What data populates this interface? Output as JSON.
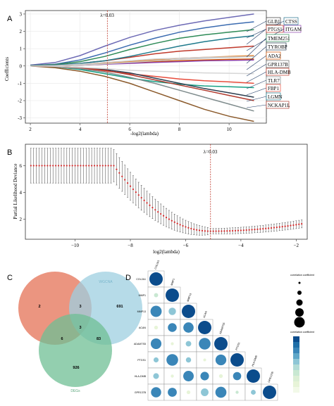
{
  "panel_labels": [
    "A",
    "B",
    "C",
    "D"
  ],
  "chart_data": [
    {
      "type": "line",
      "panel": "A",
      "title": "",
      "xlabel": "-log2(lambda)",
      "ylabel": "Coefficients",
      "xlim": [
        1.8,
        11.5
      ],
      "ylim": [
        -3.3,
        3.2
      ],
      "xticks": [
        "2",
        "4",
        "6",
        "8",
        "10"
      ],
      "yticks": [
        "-3",
        "-2",
        "-1",
        "0",
        "1",
        "2",
        "3"
      ],
      "grid": true,
      "vline": {
        "x": 5.1,
        "label": "λ=0.03"
      },
      "x": [
        2,
        3,
        4,
        5,
        6,
        7,
        8,
        9,
        10,
        11
      ],
      "series": [
        {
          "color": "#6d6ab5",
          "values": [
            0.05,
            0.2,
            0.6,
            1.15,
            1.65,
            2.05,
            2.35,
            2.6,
            2.8,
            3.0
          ]
        },
        {
          "color": "#3b6bb0",
          "values": [
            0.03,
            0.1,
            0.35,
            0.75,
            1.2,
            1.6,
            1.95,
            2.2,
            2.4,
            2.55
          ]
        },
        {
          "color": "#2e8b57",
          "values": [
            0.02,
            0.08,
            0.25,
            0.55,
            0.95,
            1.3,
            1.6,
            1.8,
            1.95,
            2.1
          ]
        },
        {
          "color": "#c0392b",
          "values": [
            0.0,
            0.05,
            0.15,
            0.3,
            0.5,
            0.7,
            0.85,
            0.95,
            1.05,
            1.15
          ]
        },
        {
          "color": "#e67e22",
          "values": [
            0.0,
            0.03,
            0.08,
            0.15,
            0.25,
            0.35,
            0.45,
            0.5,
            0.55,
            0.6
          ]
        },
        {
          "color": "#d35400",
          "values": [
            0.0,
            0.0,
            0.05,
            0.1,
            0.18,
            0.25,
            0.3,
            0.35,
            0.38,
            0.4
          ]
        },
        {
          "color": "#8e44ad",
          "values": [
            0.0,
            0.02,
            0.05,
            0.1,
            0.15,
            0.2,
            0.25,
            0.3,
            0.32,
            0.35
          ]
        },
        {
          "color": "#16a085",
          "values": [
            0.0,
            -0.05,
            -0.2,
            -0.45,
            -0.7,
            -0.9,
            -1.05,
            -1.15,
            -1.2,
            -1.25
          ]
        },
        {
          "color": "#e74c3c",
          "values": [
            0.0,
            -0.03,
            -0.12,
            -0.28,
            -0.45,
            -0.6,
            -0.75,
            -0.85,
            -0.92,
            -1.0
          ]
        },
        {
          "color": "#2c3e50",
          "values": [
            0.0,
            -0.02,
            -0.08,
            -0.2,
            -0.4,
            -0.7,
            -1.0,
            -1.3,
            -1.55,
            -1.8
          ]
        },
        {
          "color": "#7f8c8d",
          "values": [
            0.0,
            -0.05,
            -0.15,
            -0.35,
            -0.65,
            -1.0,
            -1.4,
            -1.8,
            -2.2,
            -2.6
          ]
        },
        {
          "color": "#8b5a2b",
          "values": [
            0.0,
            -0.1,
            -0.3,
            -0.6,
            -1.0,
            -1.5,
            -2.0,
            -2.5,
            -2.9,
            -3.2
          ]
        },
        {
          "color": "#1f7a8c",
          "values": [
            0.0,
            0.05,
            0.15,
            0.3,
            0.55,
            0.85,
            1.15,
            1.4,
            1.6,
            1.75
          ]
        },
        {
          "color": "#b03a2e",
          "values": [
            0.0,
            -0.02,
            -0.1,
            -0.25,
            -0.5,
            -0.8,
            -1.1,
            -1.4,
            -1.7,
            -2.0
          ]
        },
        {
          "color": "#cfcfcf",
          "values": [
            0.0,
            0.02,
            0.1,
            0.2,
            0.3,
            0.4,
            0.45,
            0.5,
            0.52,
            0.55
          ]
        },
        {
          "color": "#d6d6d6",
          "values": [
            0.0,
            -0.02,
            -0.08,
            -0.15,
            -0.25,
            -0.3,
            -0.35,
            -0.4,
            -0.42,
            -0.45
          ]
        },
        {
          "color": "#c8c8c8",
          "values": [
            0.0,
            0.01,
            0.05,
            0.12,
            0.2,
            0.3,
            0.38,
            0.45,
            0.5,
            0.55
          ]
        }
      ],
      "gene_labels": [
        "GLB1",
        "CTSS",
        "PTGS1",
        "ITGAM",
        "TMEM251",
        "TYROBP",
        "ADA2",
        "GPR137B",
        "HLA-DMB",
        "TLR7",
        "FBP1",
        "LGMN",
        "NCKAP1L"
      ]
    },
    {
      "type": "scatter",
      "panel": "B",
      "title": "",
      "xlabel": "log2(lambda)",
      "ylabel": "Partial Likelihood Deviance",
      "xlim": [
        -11.8,
        -1.6
      ],
      "ylim": [
        0.5,
        7.6
      ],
      "xticks": [
        "−10",
        "−8",
        "−6",
        "−4",
        "−2"
      ],
      "yticks": [
        "2",
        "4",
        "6"
      ],
      "vline": {
        "x": -5.1,
        "label": "λ=0.03"
      },
      "x_start": -11.6,
      "x_step": 0.1,
      "note": "cross-validation means (red points) with error bars"
    },
    {
      "type": "table",
      "panel": "C",
      "sets": [
        "WGCNA",
        "DEGs"
      ],
      "regions": [
        "2",
        "3",
        "691",
        "3",
        "6",
        "83",
        "926"
      ]
    },
    {
      "type": "heatmap",
      "panel": "D",
      "genes": [
        "COL2A1",
        "MMP1",
        "MMP13",
        "ACAN",
        "ADAMTS5",
        "PTGS1",
        "HLA-DMB",
        "GPR137B"
      ],
      "legend_size_title": "correlation coefficient",
      "legend_color_title": "correlation coefficient"
    }
  ]
}
